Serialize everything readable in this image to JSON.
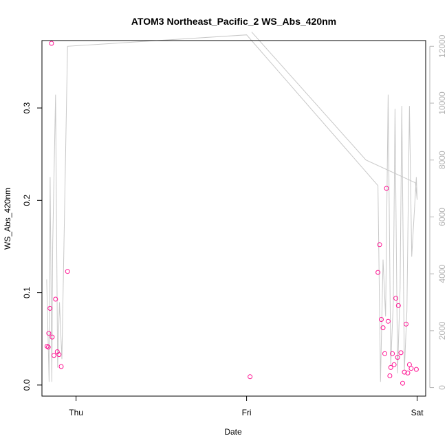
{
  "chart_data": {
    "type": "scatter",
    "title": "ATOM3 Northeast_Pacific_2 WS_Abs_420nm",
    "xlabel": "Date",
    "ylabel": "WS_Abs_420nm",
    "x_ticks": [
      {
        "value": 0.0,
        "label": "Thu"
      },
      {
        "value": 1.0,
        "label": "Fri"
      },
      {
        "value": 2.0,
        "label": "Sat"
      }
    ],
    "xlim": [
      -0.2,
      2.05
    ],
    "ylim": [
      -0.012,
      0.373
    ],
    "y_ticks": [
      0.0,
      0.1,
      0.2,
      0.3
    ],
    "y_tick_labels": [
      "0.0",
      "0.1",
      "0.2",
      "0.3"
    ],
    "right_axis": {
      "ylim": [
        -300,
        12200
      ],
      "ticks": [
        0,
        2000,
        4000,
        6000,
        8000,
        10000,
        12000
      ],
      "tick_labels": [
        "0",
        "2000",
        "4000",
        "6000",
        "8000",
        "10000",
        "12000"
      ],
      "color": "#b3b3b3"
    },
    "points_color": "#ff1493",
    "series": [
      {
        "kind": "points",
        "points": [
          {
            "x": -0.17,
            "y": 0.042
          },
          {
            "x": -0.163,
            "y": 0.041
          },
          {
            "x": -0.16,
            "y": 0.056
          },
          {
            "x": -0.153,
            "y": 0.083
          },
          {
            "x": -0.144,
            "y": 0.37
          },
          {
            "x": -0.14,
            "y": 0.052
          },
          {
            "x": -0.13,
            "y": 0.032
          },
          {
            "x": -0.12,
            "y": 0.093
          },
          {
            "x": -0.11,
            "y": 0.036
          },
          {
            "x": -0.1,
            "y": 0.033
          },
          {
            "x": -0.087,
            "y": 0.02
          },
          {
            "x": -0.05,
            "y": 0.123
          },
          {
            "x": 1.02,
            "y": 0.009
          },
          {
            "x": 1.77,
            "y": 0.122
          },
          {
            "x": 1.78,
            "y": 0.152
          },
          {
            "x": 1.79,
            "y": 0.071
          },
          {
            "x": 1.8,
            "y": 0.062
          },
          {
            "x": 1.81,
            "y": 0.034
          },
          {
            "x": 1.82,
            "y": 0.213
          },
          {
            "x": 1.83,
            "y": 0.069
          },
          {
            "x": 1.84,
            "y": 0.01
          },
          {
            "x": 1.845,
            "y": 0.019
          },
          {
            "x": 1.855,
            "y": 0.034
          },
          {
            "x": 1.865,
            "y": 0.022
          },
          {
            "x": 1.875,
            "y": 0.094
          },
          {
            "x": 1.885,
            "y": 0.03
          },
          {
            "x": 1.89,
            "y": 0.086
          },
          {
            "x": 1.905,
            "y": 0.035
          },
          {
            "x": 1.915,
            "y": 0.002
          },
          {
            "x": 1.925,
            "y": 0.014
          },
          {
            "x": 1.935,
            "y": 0.066
          },
          {
            "x": 1.945,
            "y": 0.013
          },
          {
            "x": 1.955,
            "y": 0.022
          },
          {
            "x": 1.965,
            "y": 0.018
          },
          {
            "x": 1.995,
            "y": 0.017
          }
        ]
      },
      {
        "kind": "line",
        "axis": "right",
        "color": "#c8c8c8",
        "points": [
          {
            "x": -0.172,
            "y": 3800
          },
          {
            "x": -0.158,
            "y": 200
          },
          {
            "x": -0.152,
            "y": 7400
          },
          {
            "x": -0.142,
            "y": 200
          },
          {
            "x": -0.137,
            "y": 5000
          },
          {
            "x": -0.12,
            "y": 10300
          },
          {
            "x": -0.108,
            "y": 700
          },
          {
            "x": -0.097,
            "y": 3000
          },
          {
            "x": -0.083,
            "y": 1000
          },
          {
            "x": -0.05,
            "y": 12000
          },
          {
            "x": 1.0,
            "y": 12400
          },
          {
            "x": 1.77,
            "y": 7100
          },
          {
            "x": 1.785,
            "y": 200
          },
          {
            "x": 1.8,
            "y": 4500
          },
          {
            "x": 1.815,
            "y": 2500
          },
          {
            "x": 1.83,
            "y": 10300
          },
          {
            "x": 1.845,
            "y": 800
          },
          {
            "x": 1.86,
            "y": 3000
          },
          {
            "x": 1.87,
            "y": 9800
          },
          {
            "x": 1.885,
            "y": 500
          },
          {
            "x": 1.9,
            "y": 3500
          },
          {
            "x": 1.91,
            "y": 9900
          },
          {
            "x": 1.925,
            "y": 600
          },
          {
            "x": 1.94,
            "y": 2700
          },
          {
            "x": 1.955,
            "y": 9900
          },
          {
            "x": 1.968,
            "y": 4600
          },
          {
            "x": 1.995,
            "y": 7400
          },
          {
            "x": 2.0,
            "y": 6600
          },
          {
            "x": 1.99,
            "y": 7200
          },
          {
            "x": 1.7,
            "y": 8000
          },
          {
            "x": 1.03,
            "y": 12500
          }
        ]
      }
    ]
  }
}
